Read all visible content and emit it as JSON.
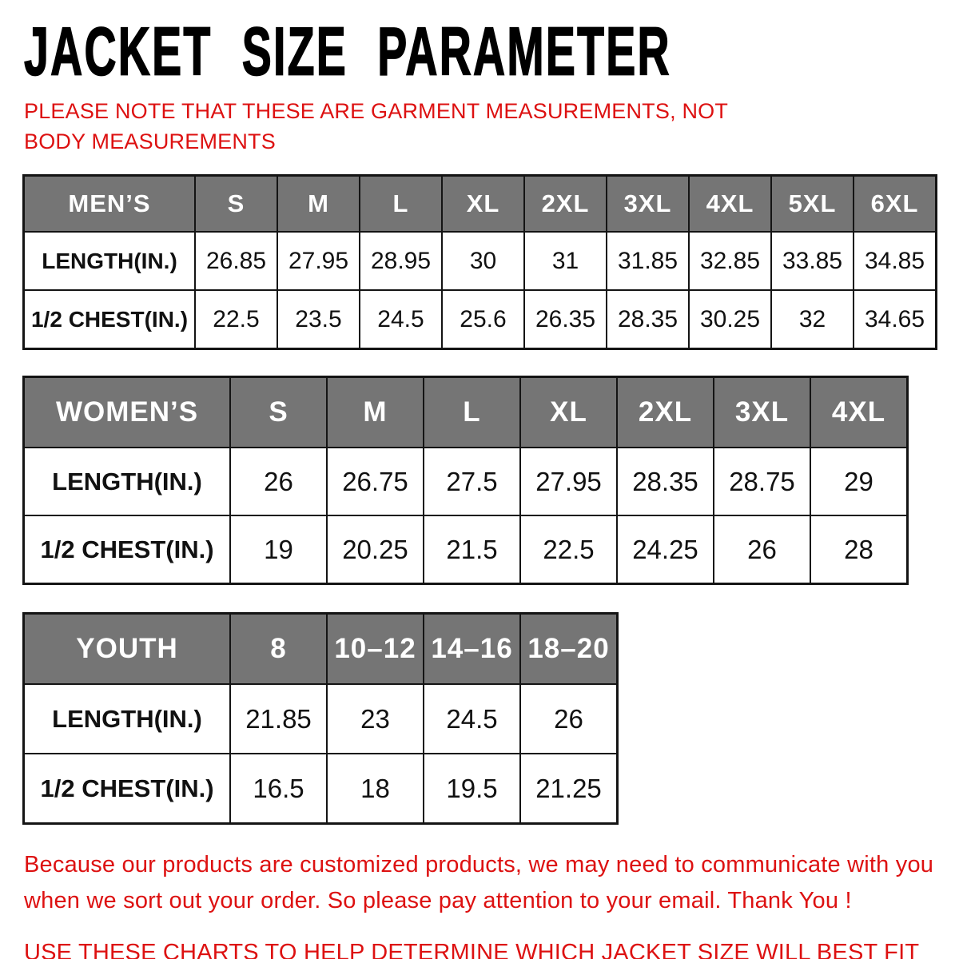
{
  "title": "JACKET SIZE PARAMETER",
  "note": "PLEASE NOTE THAT THESE ARE GARMENT MEASUREMENTS, NOT BODY MEASUREMENTS",
  "colors": {
    "accent_red": "#dd1111",
    "header_gray": "#757575",
    "border_dark": "#141414",
    "title_black": "#000000"
  },
  "tables": [
    {
      "id": "mens",
      "name": "MEN’S",
      "sizes": [
        "S",
        "M",
        "L",
        "XL",
        "2XL",
        "3XL",
        "4XL",
        "5XL",
        "6XL"
      ],
      "rows": [
        {
          "label": "LENGTH(IN.)",
          "values": [
            "26.85",
            "27.95",
            "28.95",
            "30",
            "31",
            "31.85",
            "32.85",
            "33.85",
            "34.85"
          ]
        },
        {
          "label": "1/2 CHEST(IN.)",
          "values": [
            "22.5",
            "23.5",
            "24.5",
            "25.6",
            "26.35",
            "28.35",
            "30.25",
            "32",
            "34.65"
          ]
        }
      ]
    },
    {
      "id": "womens",
      "name": "WOMEN’S",
      "sizes": [
        "S",
        "M",
        "L",
        "XL",
        "2XL",
        "3XL",
        "4XL"
      ],
      "rows": [
        {
          "label": "LENGTH(IN.)",
          "values": [
            "26",
            "26.75",
            "27.5",
            "27.95",
            "28.35",
            "28.75",
            "29"
          ]
        },
        {
          "label": "1/2 CHEST(IN.)",
          "values": [
            "19",
            "20.25",
            "21.5",
            "22.5",
            "24.25",
            "26",
            "28"
          ]
        }
      ]
    },
    {
      "id": "youth",
      "name": "YOUTH",
      "sizes": [
        "8",
        "10–12",
        "14–16",
        "18–20"
      ],
      "rows": [
        {
          "label": "LENGTH(IN.)",
          "values": [
            "21.85",
            "23",
            "24.5",
            "26"
          ]
        },
        {
          "label": "1/2 CHEST(IN.)",
          "values": [
            "16.5",
            "18",
            "19.5",
            "21.25"
          ]
        }
      ]
    }
  ],
  "footer": {
    "paragraph1": "Because our products are customized products, we may need to communicate with you when we sort out your order. So please pay attention to your email. Thank You !",
    "paragraph2": "USE THESE CHARTS TO HELP DETERMINE WHICH JACKET SIZE WILL BEST FIT YOU."
  }
}
